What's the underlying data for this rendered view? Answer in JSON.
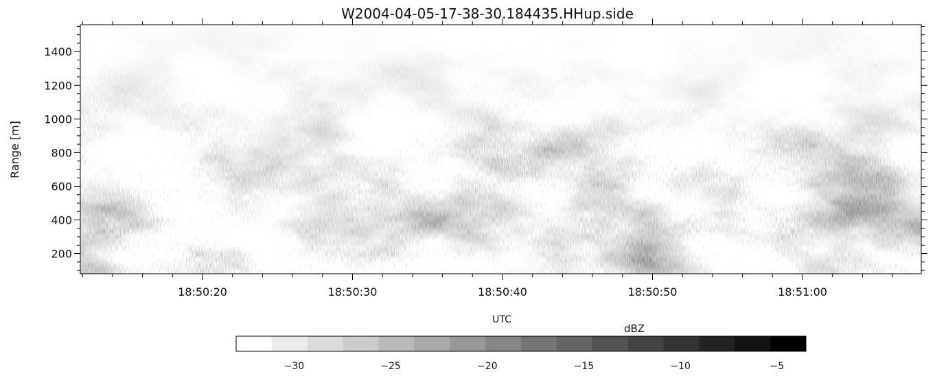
{
  "chart_data": {
    "type": "heatmap",
    "title": "W2004-04-05-17-38-30.184435.HHup.side",
    "xlabel": "UTC",
    "ylabel": "Range [m]",
    "x_ticks": [
      "18:50:20",
      "18:50:30",
      "18:50:40",
      "18:50:50",
      "18:51:00"
    ],
    "y_ticks": [
      200,
      400,
      600,
      800,
      1000,
      1200,
      1400
    ],
    "ylim": [
      80,
      1560
    ],
    "grid": false,
    "colorbar": {
      "label": "dBZ",
      "range": [
        -33,
        -3.5
      ],
      "ticks": [
        -30,
        -25,
        -20,
        -15,
        -10,
        -5
      ],
      "levels": [
        "#ffffff",
        "#ececec",
        "#dcdcdc",
        "#cbcbcb",
        "#bababa",
        "#a8a8a8",
        "#979797",
        "#868686",
        "#757575",
        "#646464",
        "#535353",
        "#434343",
        "#333333",
        "#232323",
        "#121212",
        "#000000"
      ]
    },
    "description": "Grayscale radar reflectivity (dBZ) time-height section; dark = strong echo, white = weak/noise at upper ranges"
  }
}
